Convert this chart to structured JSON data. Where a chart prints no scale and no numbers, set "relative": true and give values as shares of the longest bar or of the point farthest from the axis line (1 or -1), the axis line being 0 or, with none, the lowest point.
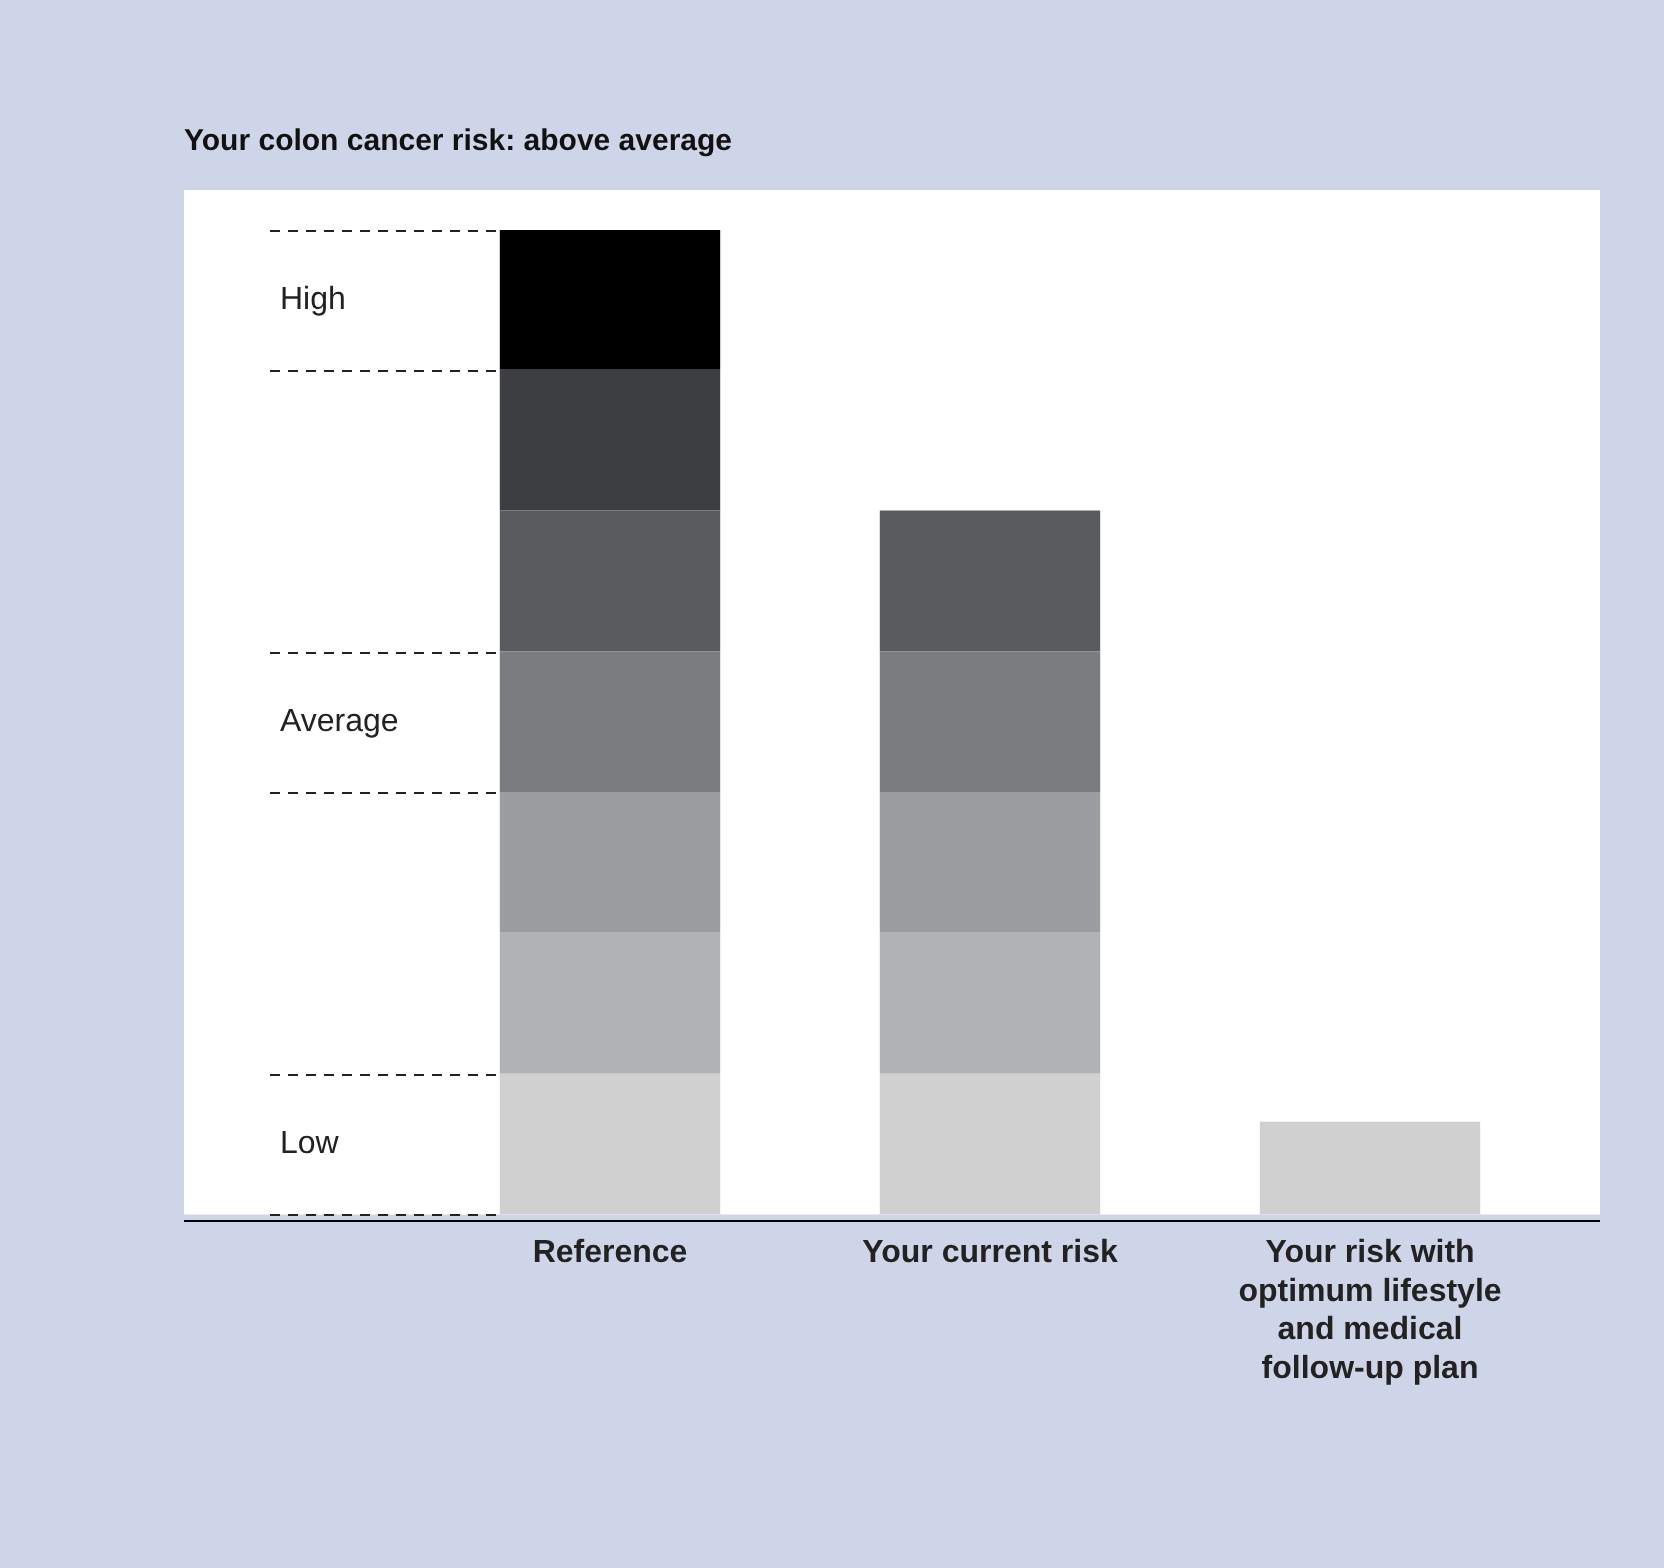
{
  "chart_data": {
    "type": "bar",
    "title": "Your colon cancer risk: above average",
    "categories": [
      "Reference",
      "Your current risk",
      "Your risk with optimum lifestyle and medical follow-up plan"
    ],
    "stacked": true,
    "relative": true,
    "legend": false,
    "grid": false,
    "series": [
      {
        "color": "#d0d0d0",
        "values": [
          0.143,
          0.143,
          0.094
        ]
      },
      {
        "color": "#b0b2b4",
        "values": [
          0.143,
          0.143,
          null
        ]
      },
      {
        "color": "#9a9c9f",
        "values": [
          0.143,
          0.143,
          null
        ]
      },
      {
        "color": "#7b7c80",
        "values": [
          0.143,
          0.143,
          null
        ]
      },
      {
        "color": "#5a5b5f",
        "values": [
          0.143,
          0.143,
          null
        ]
      },
      {
        "color": "#3c3e41",
        "values": [
          0.143,
          null,
          null
        ]
      },
      {
        "color": "#000000",
        "values": [
          0.142,
          null,
          null
        ]
      }
    ],
    "ref_lines": [
      {
        "axis": "y",
        "value": 0,
        "line_style": "dashed"
      },
      {
        "axis": "y",
        "value": 0.143,
        "line_style": "dashed"
      },
      {
        "axis": "y",
        "value": 0.429,
        "line_style": "dashed"
      },
      {
        "axis": "y",
        "value": 0.572,
        "line_style": "dashed"
      },
      {
        "axis": "y",
        "value": 0.858,
        "line_style": "dashed"
      },
      {
        "axis": "y",
        "value": 1,
        "line_style": "dashed"
      }
    ],
    "annotations": [
      "Low",
      "Average",
      "High"
    ]
  }
}
